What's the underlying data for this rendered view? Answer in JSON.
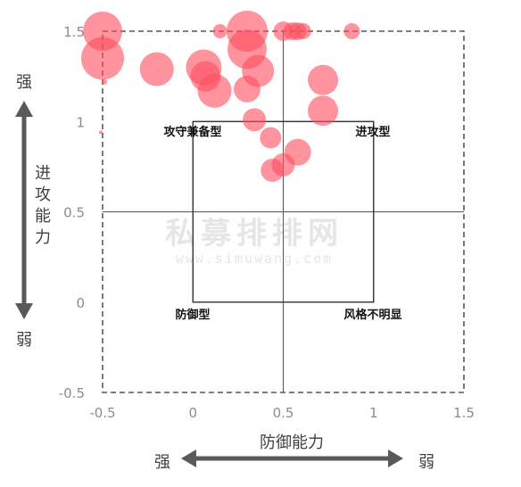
{
  "chart_data": {
    "type": "scatter",
    "title": "",
    "xlabel": "防御能力",
    "ylabel": "进攻能力",
    "xlim": [
      -0.5,
      1.5
    ],
    "ylim": [
      -0.5,
      1.5
    ],
    "x_ticks": [
      "-0.5",
      "0",
      "0.5",
      "1",
      "1.5"
    ],
    "y_ticks": [
      "-0.5",
      "0",
      "0.5",
      "1",
      "1.5"
    ],
    "x_direction": {
      "left": "强",
      "right": "弱"
    },
    "y_direction": {
      "top": "强",
      "bottom": "弱"
    },
    "quadrant_labels": [
      "攻守兼备型",
      "进攻型",
      "防御型",
      "风格不明显"
    ],
    "watermark": {
      "main": "私募排排网",
      "url": "www.simuwang.com"
    },
    "bubble_color": "#ff4d5e",
    "points": [
      {
        "x": -0.5,
        "y": 1.5,
        "size": 22
      },
      {
        "x": -0.5,
        "y": 1.35,
        "size": 24
      },
      {
        "x": -0.2,
        "y": 1.29,
        "size": 19
      },
      {
        "x": 0.06,
        "y": 1.3,
        "size": 20
      },
      {
        "x": 0.07,
        "y": 1.25,
        "size": 17
      },
      {
        "x": 0.12,
        "y": 1.17,
        "size": 19
      },
      {
        "x": 0.15,
        "y": 1.5,
        "size": 8
      },
      {
        "x": 0.3,
        "y": 1.5,
        "size": 23
      },
      {
        "x": 0.3,
        "y": 1.4,
        "size": 22
      },
      {
        "x": 0.36,
        "y": 1.28,
        "size": 18
      },
      {
        "x": 0.3,
        "y": 1.18,
        "size": 15
      },
      {
        "x": 0.34,
        "y": 1.01,
        "size": 13
      },
      {
        "x": 0.43,
        "y": 0.91,
        "size": 12
      },
      {
        "x": 0.5,
        "y": 1.5,
        "size": 11
      },
      {
        "x": 0.55,
        "y": 1.5,
        "size": 10
      },
      {
        "x": 0.58,
        "y": 1.5,
        "size": 10
      },
      {
        "x": 0.61,
        "y": 1.5,
        "size": 9
      },
      {
        "x": 0.72,
        "y": 1.23,
        "size": 17
      },
      {
        "x": 0.72,
        "y": 1.06,
        "size": 17
      },
      {
        "x": 0.58,
        "y": 0.83,
        "size": 15
      },
      {
        "x": 0.5,
        "y": 0.76,
        "size": 13
      },
      {
        "x": 0.44,
        "y": 0.73,
        "size": 13
      },
      {
        "x": 0.88,
        "y": 1.5,
        "size": 9
      },
      {
        "x": -0.49,
        "y": 1.22,
        "size": 3
      },
      {
        "x": -0.51,
        "y": 0.94,
        "size": 2
      }
    ]
  }
}
